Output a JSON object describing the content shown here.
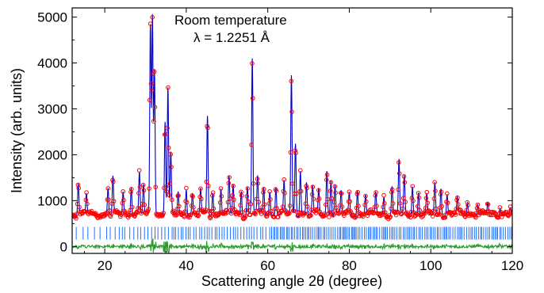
{
  "chart_data": {
    "type": "line",
    "title": "",
    "xlabel": "Scattering angle 2θ (degree)",
    "ylabel": "Intensity (arb. units)",
    "xlim": [
      12,
      120
    ],
    "ylim": [
      -150,
      5200
    ],
    "x_ticks": [
      20,
      40,
      60,
      80,
      100,
      120
    ],
    "y_ticks": [
      0,
      1000,
      2000,
      3000,
      4000,
      5000
    ],
    "annotations": [
      "Room temperature",
      "λ = 1.2251 Å"
    ],
    "grid": false,
    "background_level": 700,
    "peaks": [
      {
        "x": 13.5,
        "y": 1400
      },
      {
        "x": 15.5,
        "y": 1150
      },
      {
        "x": 20.8,
        "y": 1300
      },
      {
        "x": 22.0,
        "y": 1500
      },
      {
        "x": 24.5,
        "y": 1200
      },
      {
        "x": 26.5,
        "y": 1350
      },
      {
        "x": 28.5,
        "y": 1600
      },
      {
        "x": 29.5,
        "y": 1350
      },
      {
        "x": 31.2,
        "y": 4800
      },
      {
        "x": 31.7,
        "y": 5050
      },
      {
        "x": 32.2,
        "y": 3900
      },
      {
        "x": 34.8,
        "y": 2750
      },
      {
        "x": 35.5,
        "y": 3450
      },
      {
        "x": 36.2,
        "y": 2000
      },
      {
        "x": 38.0,
        "y": 1200
      },
      {
        "x": 40.0,
        "y": 1300
      },
      {
        "x": 41.5,
        "y": 1150
      },
      {
        "x": 43.5,
        "y": 1250
      },
      {
        "x": 45.2,
        "y": 2850
      },
      {
        "x": 46.5,
        "y": 1200
      },
      {
        "x": 48.5,
        "y": 1300
      },
      {
        "x": 50.5,
        "y": 1500
      },
      {
        "x": 51.5,
        "y": 1350
      },
      {
        "x": 53.5,
        "y": 1250
      },
      {
        "x": 55.0,
        "y": 1300
      },
      {
        "x": 56.2,
        "y": 4100
      },
      {
        "x": 57.5,
        "y": 1500
      },
      {
        "x": 59.0,
        "y": 1300
      },
      {
        "x": 60.5,
        "y": 1200
      },
      {
        "x": 62.0,
        "y": 1350
      },
      {
        "x": 64.0,
        "y": 1400
      },
      {
        "x": 65.8,
        "y": 3700
      },
      {
        "x": 66.8,
        "y": 2250
      },
      {
        "x": 68.0,
        "y": 1700
      },
      {
        "x": 69.5,
        "y": 1400
      },
      {
        "x": 71.0,
        "y": 1300
      },
      {
        "x": 72.5,
        "y": 1250
      },
      {
        "x": 74.5,
        "y": 1650
      },
      {
        "x": 75.5,
        "y": 1500
      },
      {
        "x": 76.5,
        "y": 1350
      },
      {
        "x": 78.0,
        "y": 1200
      },
      {
        "x": 80.0,
        "y": 1150
      },
      {
        "x": 82.0,
        "y": 1250
      },
      {
        "x": 84.0,
        "y": 1150
      },
      {
        "x": 86.5,
        "y": 1200
      },
      {
        "x": 88.5,
        "y": 1100
      },
      {
        "x": 90.5,
        "y": 1300
      },
      {
        "x": 92.2,
        "y": 1900
      },
      {
        "x": 93.5,
        "y": 1500
      },
      {
        "x": 95.5,
        "y": 1350
      },
      {
        "x": 97.0,
        "y": 1200
      },
      {
        "x": 99.0,
        "y": 1100
      },
      {
        "x": 101.0,
        "y": 1400
      },
      {
        "x": 102.5,
        "y": 1300
      },
      {
        "x": 104.0,
        "y": 1150
      },
      {
        "x": 106.5,
        "y": 1050
      },
      {
        "x": 109.0,
        "y": 1000
      },
      {
        "x": 111.5,
        "y": 950
      },
      {
        "x": 114.0,
        "y": 950
      },
      {
        "x": 117.0,
        "y": 900
      },
      {
        "x": 119.5,
        "y": 850
      }
    ],
    "reflection_row_y": 290,
    "difference_baseline": 0,
    "series": [
      {
        "color": "#ff0000",
        "style": "open-circle"
      },
      {
        "color": "#0000cc",
        "style": "line"
      },
      {
        "color": "#1e6fff",
        "style": "tick"
      },
      {
        "color": "#2e9b2e",
        "style": "line"
      }
    ]
  }
}
